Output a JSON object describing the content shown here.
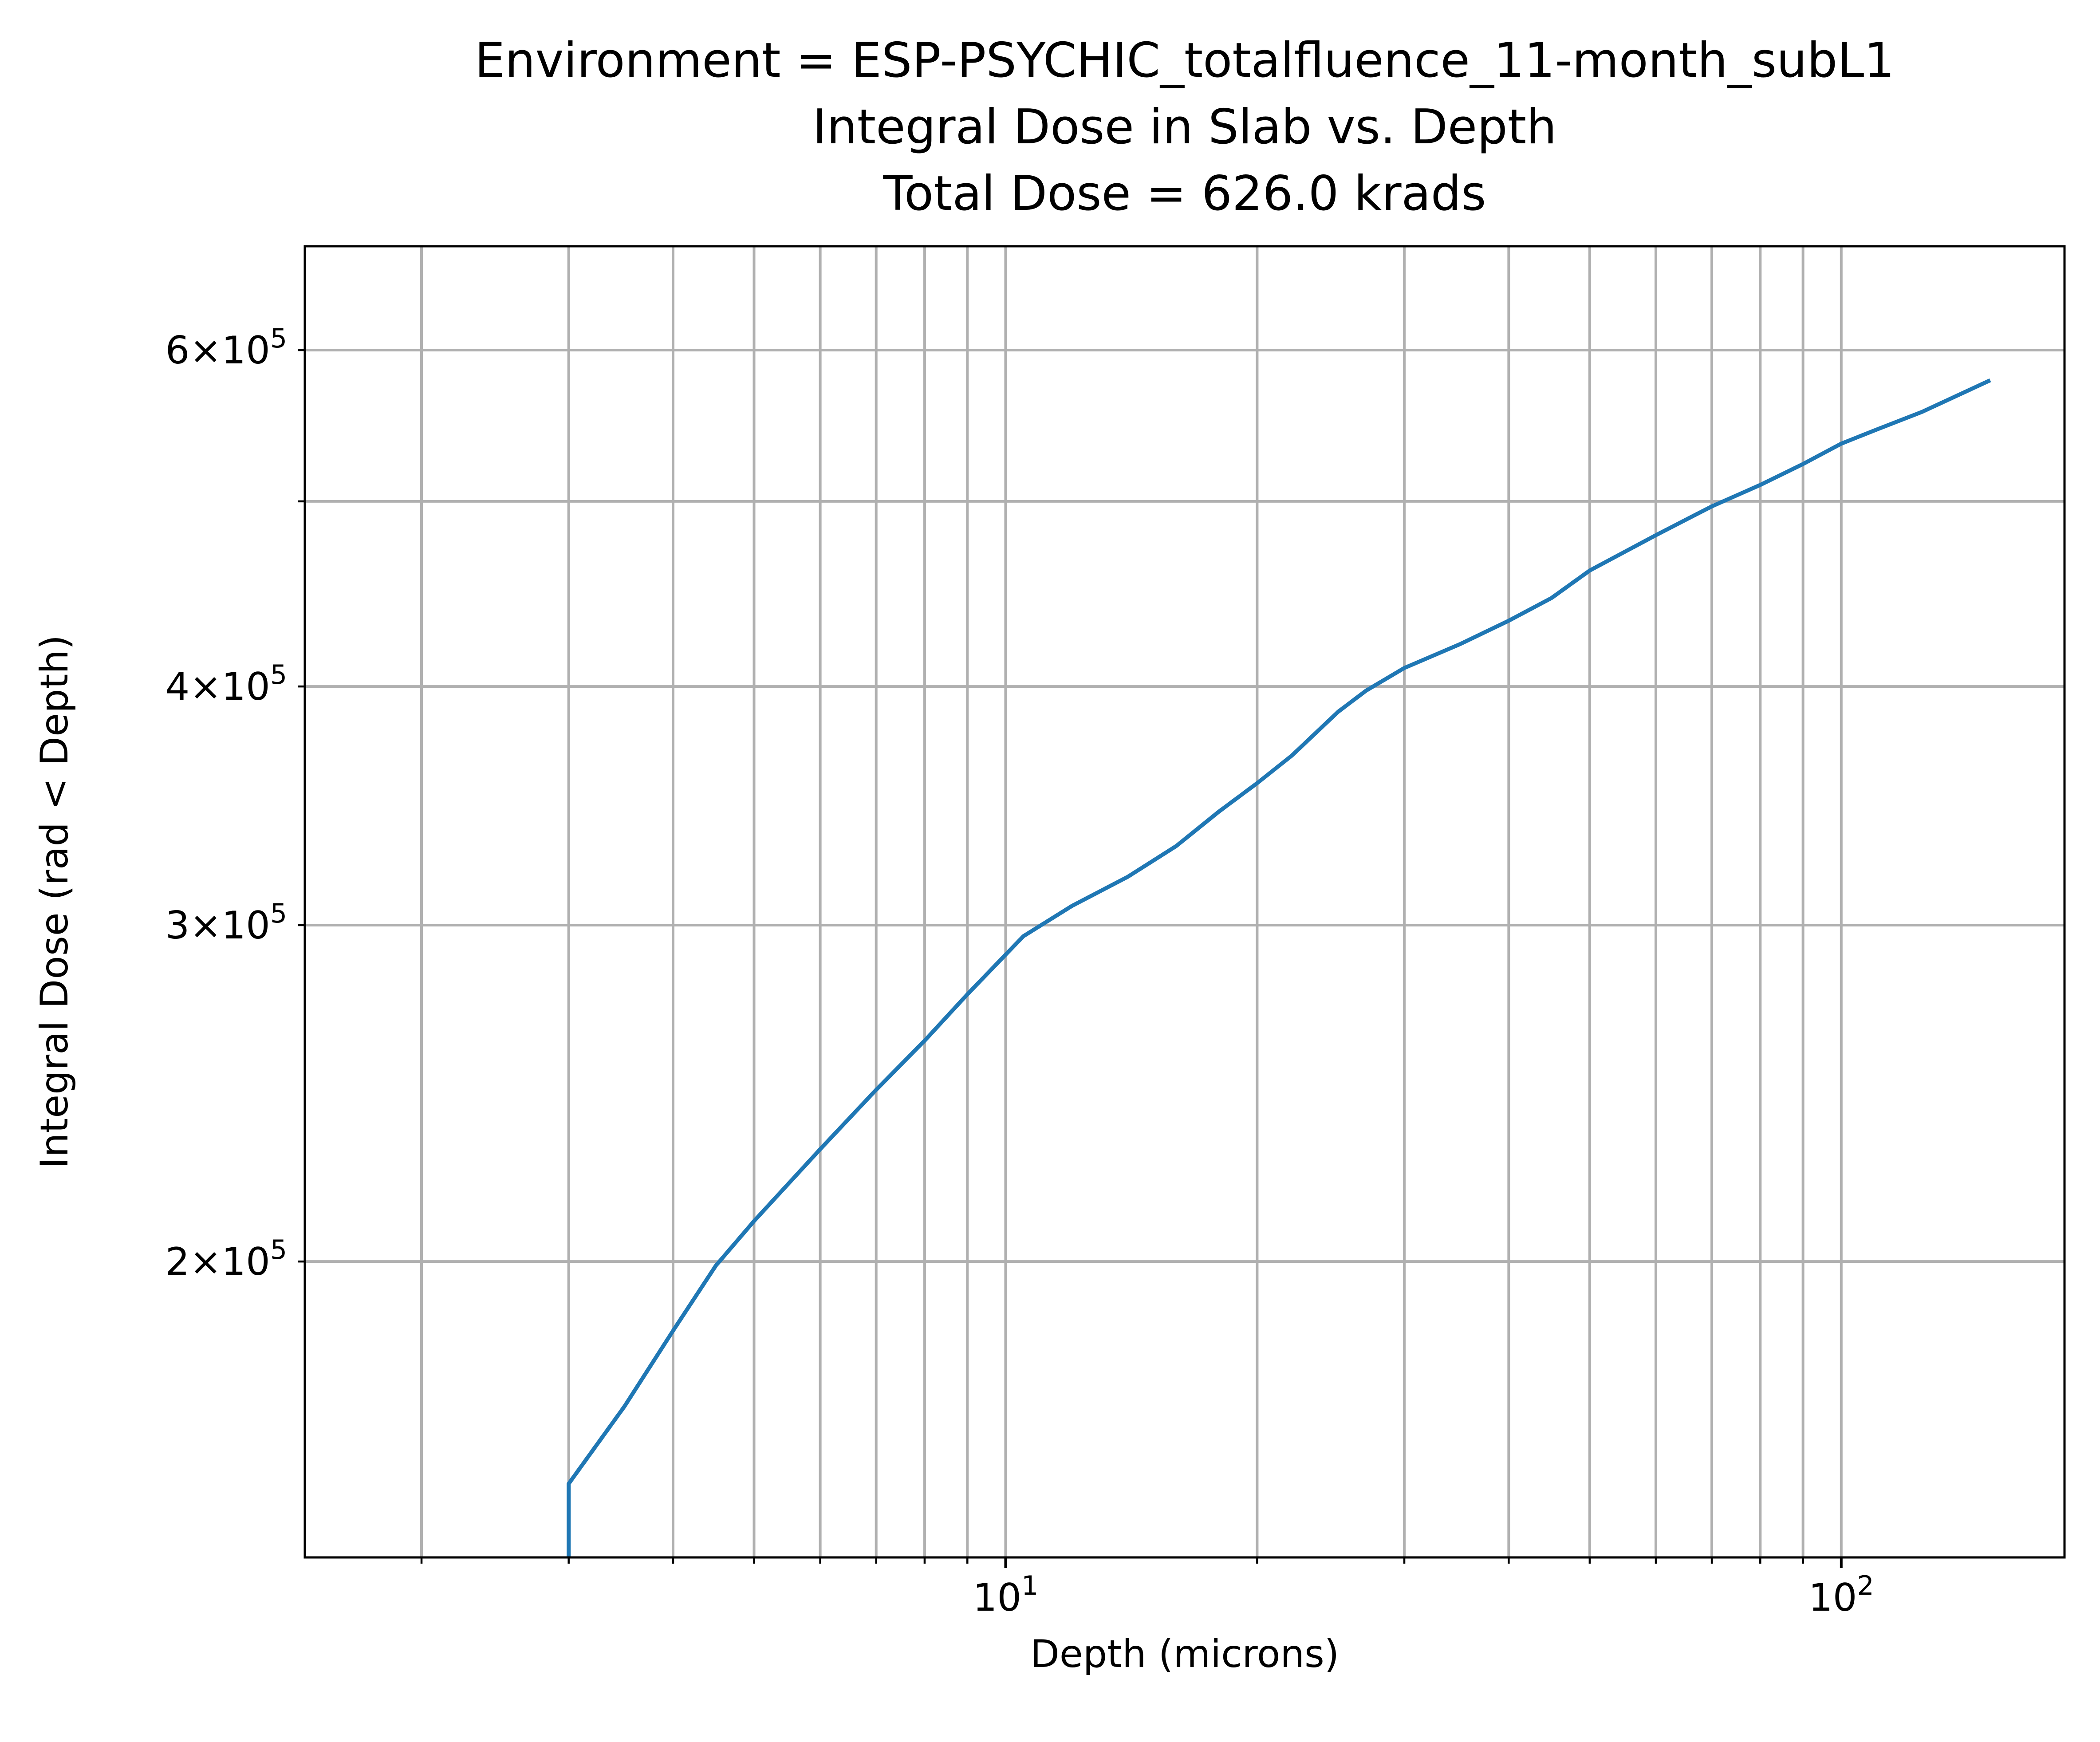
{
  "chart_data": {
    "type": "line",
    "title_lines": [
      "Environment = ESP-PSYCHIC_totalfluence_11-month_subL1",
      "Integral Dose in Slab vs. Depth",
      "Total Dose = 626.0 krads"
    ],
    "xlabel": "Depth (microns)",
    "ylabel": "Integral Dose (rad < Depth)",
    "x_scale": "log",
    "y_scale": "log",
    "xlim": [
      1.45,
      185
    ],
    "ylim": [
      140000,
      680000
    ],
    "grid": true,
    "x_ticks": [
      {
        "value": 10,
        "base": "10",
        "exp": "1"
      },
      {
        "value": 100,
        "base": "10",
        "exp": "2"
      }
    ],
    "y_ticks": [
      {
        "value": 200000,
        "coef": "2",
        "base": "10",
        "exp": "5"
      },
      {
        "value": 300000,
        "coef": "3",
        "base": "10",
        "exp": "5"
      },
      {
        "value": 400000,
        "coef": "4",
        "base": "10",
        "exp": "5"
      },
      {
        "value": 600000,
        "coef": "6",
        "base": "10",
        "exp": "5"
      }
    ],
    "series": [
      {
        "color": "#1f77b4",
        "x": [
          3.0,
          3.0,
          3.5,
          4.0,
          4.5,
          5.0,
          6.0,
          7.0,
          8.0,
          9.0,
          10.5,
          12.0,
          14.0,
          16.0,
          18.0,
          20.0,
          22.0,
          25.0,
          27.0,
          30.0,
          35.0,
          40.0,
          45.0,
          50.0,
          60.0,
          70.0,
          80.0,
          90.0,
          100.0,
          110.0,
          125.0,
          150.0
        ],
        "y": [
          130000,
          153000,
          168000,
          184000,
          199000,
          210000,
          229000,
          246000,
          261000,
          276000,
          296000,
          307000,
          318000,
          330000,
          344000,
          356000,
          368000,
          388000,
          398000,
          409000,
          421000,
          433000,
          445000,
          460000,
          480000,
          497000,
          510000,
          523000,
          536000,
          545000,
          557000,
          578000
        ]
      }
    ]
  }
}
